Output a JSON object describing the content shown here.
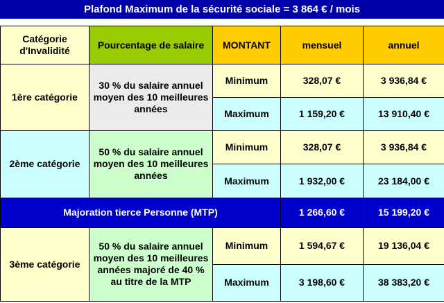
{
  "banner": "Plafond Maximum de la sécurité sociale = 3 864 € / mois",
  "header": {
    "category": "Catégorie d'Invalidité",
    "percentage": "Pourcentage de salaire",
    "montant": "MONTANT",
    "monthly": "mensuel",
    "annual": "annuel"
  },
  "cat1": {
    "label": "1ère catégorie",
    "pct": "30 % du salaire annuel moyen des 10 meilleures années",
    "min_label": "Minimum",
    "min_month": "328,07 €",
    "min_year": "3 936,84 €",
    "max_label": "Maximum",
    "max_month": "1 159,20 €",
    "max_year": "13 910,40 €"
  },
  "cat2": {
    "label": "2ème catégorie",
    "pct": "50 % du salaire annuel moyen des 10 meilleures années",
    "min_label": "Minimum",
    "min_month": "328,07 €",
    "min_year": "3 936,84 €",
    "max_label": "Maximum",
    "max_month": "1 932,00 €",
    "max_year": "23 184,00 €"
  },
  "mtp": {
    "label": "Majoration tierce Personne (MTP)",
    "month": "1 266,60 €",
    "year": "15 199,20 €"
  },
  "cat3": {
    "label": "3ème catégorie",
    "pct": "50 % du salaire annuel moyen des 10 meilleures années majoré de 40 % au titre de la MTP",
    "min_label": "Minimum",
    "min_month": "1 594,67 €",
    "min_year": "19 136,04 €",
    "max_label": "Maximum",
    "max_month": "3 198,60 €",
    "max_year": "38 383,20 €"
  },
  "colors": {
    "banner": "#0000aa",
    "header_percentage": "#99cc00",
    "header_amount": "#ffcc00",
    "light_yellow": "#ffffcc",
    "light_cyan": "#ccffff",
    "light_green": "#ccffcc",
    "light_grey": "#ebebeb",
    "mtp_row": "#0000cc"
  }
}
